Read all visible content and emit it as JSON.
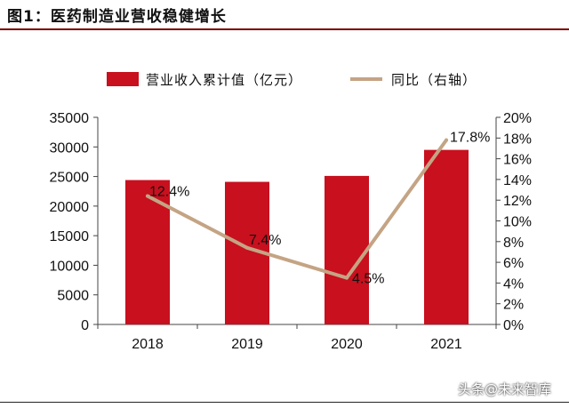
{
  "title": "图1：医药制造业营收稳健增长",
  "watermark": "头条@未来智库",
  "colors": {
    "bar": "#c8101e",
    "line": "#c4a484",
    "title_rule": "#7a0000"
  },
  "chart_data": {
    "type": "bar",
    "title": "",
    "categories": [
      "2018",
      "2019",
      "2020",
      "2021"
    ],
    "series": [
      {
        "name": "营业收入累计值（亿元）",
        "type": "bar",
        "axis": "left",
        "values": [
          24400,
          24100,
          25100,
          29500
        ]
      },
      {
        "name": "同比（右轴）",
        "type": "line",
        "axis": "right",
        "values": [
          12.4,
          7.4,
          4.5,
          17.8
        ],
        "labels": [
          "12.4%",
          "7.4%",
          "4.5%",
          "17.8%"
        ]
      }
    ],
    "ylim": [
      0,
      35000
    ],
    "y_ticks": [
      "0",
      "5000",
      "10000",
      "15000",
      "20000",
      "25000",
      "30000",
      "35000"
    ],
    "y2lim": [
      0,
      20
    ],
    "y2_ticks": [
      "0%",
      "2%",
      "4%",
      "6%",
      "8%",
      "10%",
      "12%",
      "14%",
      "16%",
      "18%",
      "20%"
    ],
    "grid": false,
    "legend_position": "top"
  }
}
